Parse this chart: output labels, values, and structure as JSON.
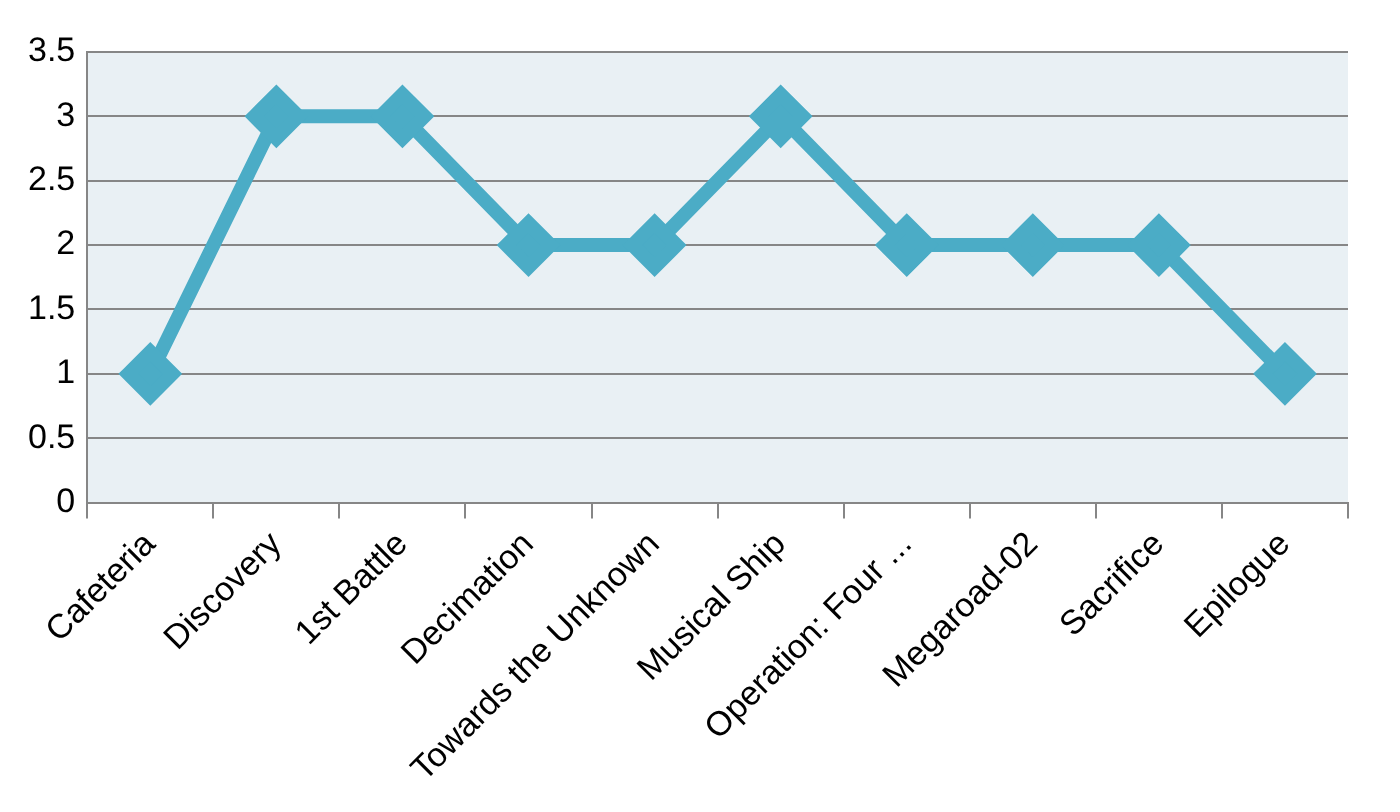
{
  "chart_data": {
    "type": "line",
    "categories": [
      "Cafeteria",
      "Discovery",
      "1st Battle",
      "Decimation",
      "Towards the Unknown",
      "Musical Ship",
      "Operation: Four ...",
      "Megaroad-02",
      "Sacrifice",
      "Epilogue"
    ],
    "series": [
      {
        "color": "#4bacc6",
        "values": [
          1,
          3,
          3,
          2,
          2,
          3,
          2,
          2,
          2,
          1
        ]
      }
    ],
    "ylim": [
      0,
      3.5
    ],
    "yticks": [
      0,
      0.5,
      1,
      1.5,
      2,
      2.5,
      3,
      3.5
    ],
    "grid": "y",
    "legend": false,
    "marker": "diamond",
    "line_style": "solid"
  }
}
